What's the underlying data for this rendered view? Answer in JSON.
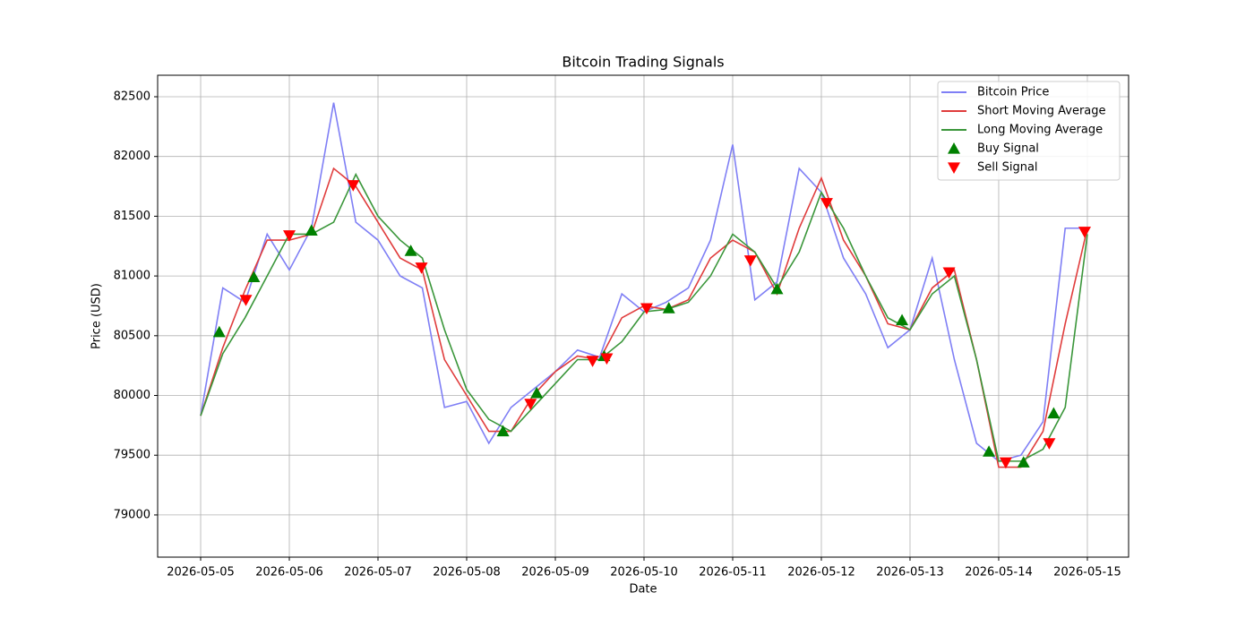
{
  "chart_data": {
    "type": "line",
    "title": "Bitcoin Trading Signals",
    "x_label": "Date",
    "y_label": "Price (USD)",
    "grid": true,
    "legend": "upper right",
    "xlim": [
      -0.485,
      10.465
    ],
    "ylim": [
      78647,
      82680
    ],
    "xticks": [
      {
        "value": 0,
        "label": "2026-05-05"
      },
      {
        "value": 1,
        "label": "2026-05-06"
      },
      {
        "value": 2,
        "label": "2026-05-07"
      },
      {
        "value": 3,
        "label": "2026-05-08"
      },
      {
        "value": 4,
        "label": "2026-05-09"
      },
      {
        "value": 5,
        "label": "2026-05-10"
      },
      {
        "value": 6,
        "label": "2026-05-11"
      },
      {
        "value": 7,
        "label": "2026-05-12"
      },
      {
        "value": 8,
        "label": "2026-05-13"
      },
      {
        "value": 9,
        "label": "2026-05-14"
      },
      {
        "value": 10,
        "label": "2026-05-15"
      }
    ],
    "yticks": [
      79000,
      79500,
      80000,
      80500,
      81000,
      81500,
      82000,
      82500
    ],
    "x": [
      0,
      0.25,
      0.5,
      0.75,
      1,
      1.25,
      1.5,
      1.75,
      2,
      2.25,
      2.5,
      2.75,
      3,
      3.25,
      3.5,
      3.75,
      4,
      4.25,
      4.5,
      4.75,
      5,
      5.25,
      5.5,
      5.75,
      6,
      6.25,
      6.5,
      6.75,
      7,
      7.25,
      7.5,
      7.75,
      8,
      8.25,
      8.5,
      8.75,
      9,
      9.25,
      9.5,
      9.75,
      10
    ],
    "series": [
      {
        "name": "Bitcoin Price",
        "color": "#7f7ff5",
        "kind": "line",
        "values": [
          79830,
          80900,
          80780,
          81350,
          81050,
          81400,
          82450,
          81450,
          81300,
          81000,
          80900,
          79900,
          79950,
          79600,
          79900,
          80050,
          80200,
          80380,
          80320,
          80850,
          80700,
          80780,
          80900,
          81300,
          82100,
          80800,
          80950,
          81900,
          81700,
          81150,
          80850,
          80400,
          80550,
          81150,
          80300,
          79600,
          79450,
          79500,
          79780,
          81400,
          81400
        ]
      },
      {
        "name": "Short Moving Average",
        "color": "#e03c3c",
        "kind": "line",
        "values": [
          79830,
          80400,
          80880,
          81300,
          81300,
          81350,
          81900,
          81750,
          81450,
          81150,
          81050,
          80300,
          80000,
          79700,
          79700,
          80000,
          80200,
          80330,
          80300,
          80650,
          80750,
          80720,
          80800,
          81150,
          81300,
          81200,
          80850,
          81400,
          81820,
          81300,
          81000,
          80600,
          80550,
          80900,
          81050,
          80300,
          79400,
          79400,
          79700,
          80600,
          81400
        ]
      },
      {
        "name": "Long Moving Average",
        "color": "#3a963a",
        "kind": "line",
        "values": [
          79830,
          80350,
          80650,
          81000,
          81350,
          81350,
          81450,
          81850,
          81500,
          81300,
          81150,
          80550,
          80050,
          79800,
          79700,
          79900,
          80100,
          80300,
          80300,
          80450,
          80700,
          80720,
          80780,
          81000,
          81350,
          81200,
          80900,
          81200,
          81700,
          81400,
          81000,
          80650,
          80550,
          80850,
          81000,
          80300,
          79450,
          79450,
          79550,
          79900,
          81350
        ]
      },
      {
        "name": "Buy Signal",
        "color": "#008000",
        "kind": "scatter",
        "marker": "up",
        "x": [
          0.21,
          0.6,
          1.25,
          2.37,
          3.41,
          3.79,
          4.55,
          5.28,
          6.5,
          7.91,
          8.89,
          9.28,
          9.62
        ],
        "values": [
          80530,
          80990,
          81380,
          81210,
          79700,
          80020,
          80330,
          80730,
          80890,
          80630,
          79530,
          79440,
          79850
        ]
      },
      {
        "name": "Sell Signal",
        "color": "#ff0000",
        "kind": "scatter",
        "marker": "down",
        "x": [
          0.51,
          1.0,
          1.72,
          2.49,
          3.72,
          4.42,
          4.58,
          5.03,
          6.2,
          7.06,
          8.44,
          9.08,
          9.57,
          9.97
        ],
        "values": [
          80800,
          81340,
          81760,
          81070,
          79930,
          80290,
          80310,
          80730,
          81130,
          81610,
          81030,
          79440,
          79600,
          81370
        ]
      }
    ]
  }
}
